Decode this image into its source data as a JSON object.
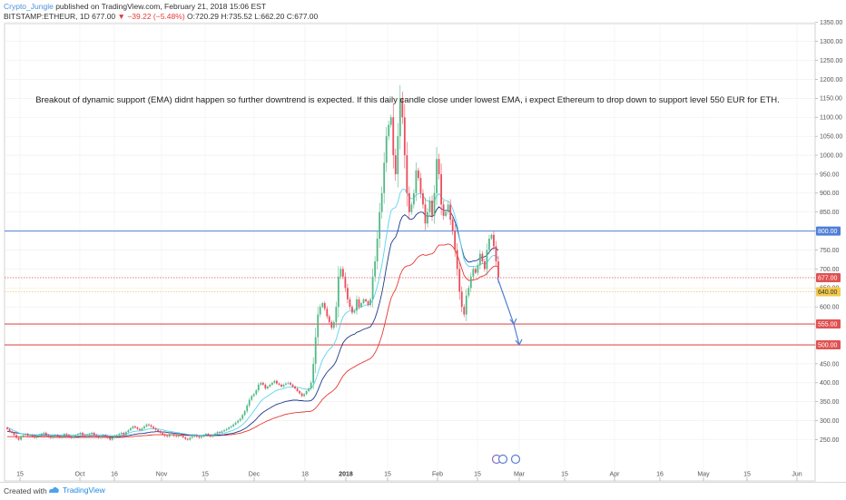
{
  "header": {
    "author": "Crypto_Jungle",
    "published": "published on TradingView.com, February 21, 2018 15:06 EST",
    "symbol": "BITSTAMP:ETHEUR, 1D",
    "last": "677.00",
    "change": "−39.22 (−5.48%)",
    "open": "O:720.29",
    "high": "H:735.52",
    "low": "L:662.20",
    "close": "C:677.00"
  },
  "footer": {
    "created": "Created with",
    "brand": "TradingView"
  },
  "chart_data": {
    "type": "line",
    "annotation": "Breakout of dynamic support (EMA) didnt happen so further downtrend is expected. If this daily candle close under lowest EMA, i expect Ethereum to drop down to support level 550 EUR for ETH.",
    "ylim": [
      228,
      1380
    ],
    "y_ticks": [
      250,
      300,
      350,
      400,
      450,
      500,
      550,
      600,
      650,
      700,
      750,
      800,
      850,
      900,
      950,
      1000,
      1050,
      1100,
      1150,
      1200,
      1250,
      1300,
      1350
    ],
    "x_ticks": [
      {
        "label": "15",
        "bold": false
      },
      {
        "label": "Oct",
        "bold": false
      },
      {
        "label": "16",
        "bold": false
      },
      {
        "label": "Nov",
        "bold": false
      },
      {
        "label": "15",
        "bold": false
      },
      {
        "label": "Dec",
        "bold": false
      },
      {
        "label": "18",
        "bold": false
      },
      {
        "label": "2018",
        "bold": true
      },
      {
        "label": "15",
        "bold": false
      },
      {
        "label": "Feb",
        "bold": false
      },
      {
        "label": "15",
        "bold": false
      },
      {
        "label": "Mar",
        "bold": false
      },
      {
        "label": "15",
        "bold": false
      },
      {
        "label": "Apr",
        "bold": false
      },
      {
        "label": "16",
        "bold": false
      },
      {
        "label": "May",
        "bold": false
      },
      {
        "label": "15",
        "bold": false
      },
      {
        "label": "Jun",
        "bold": false
      }
    ],
    "levels": [
      {
        "value": 800,
        "label": "800.00",
        "color": "#4f7fd6"
      },
      {
        "value": 677,
        "label": "677.00",
        "color": "#e05252"
      },
      {
        "value": 640,
        "label": "640.00",
        "color": "#f2c94c"
      },
      {
        "value": 555,
        "label": "555.00",
        "color": "#e05252"
      },
      {
        "value": 500,
        "label": "500.00",
        "color": "#e05252"
      }
    ],
    "candles_close": [
      278,
      272,
      268,
      262,
      255,
      250,
      258,
      262,
      265,
      260,
      262,
      258,
      255,
      260,
      262,
      265,
      268,
      262,
      258,
      255,
      260,
      262,
      258,
      256,
      260,
      265,
      262,
      258,
      255,
      260,
      262,
      265,
      268,
      262,
      258,
      262,
      265,
      268,
      262,
      258,
      255,
      260,
      262,
      258,
      255,
      250,
      255,
      260,
      262,
      265,
      268,
      262,
      270,
      275,
      280,
      285,
      282,
      278,
      275,
      280,
      285,
      290,
      288,
      284,
      280,
      276,
      272,
      268,
      264,
      260,
      258,
      262,
      264,
      260,
      258,
      262,
      260,
      256,
      252,
      250,
      255,
      258,
      262,
      258,
      255,
      258,
      262,
      265,
      262,
      258,
      262,
      266,
      270,
      268,
      272,
      275,
      278,
      282,
      285,
      290,
      295,
      300,
      305,
      315,
      325,
      340,
      355,
      365,
      370,
      380,
      395,
      400,
      395,
      385,
      390,
      395,
      400,
      405,
      398,
      395,
      390,
      395,
      398,
      400,
      395,
      390,
      385,
      378,
      372,
      365,
      370,
      378,
      385,
      400,
      450,
      520,
      580,
      600,
      610,
      595,
      575,
      560,
      545,
      560,
      600,
      680,
      700,
      680,
      650,
      620,
      600,
      585,
      590,
      620,
      600,
      610,
      620,
      615,
      605,
      620,
      680,
      720,
      780,
      850,
      900,
      980,
      1050,
      1080,
      1100,
      1000,
      950,
      1050,
      1150,
      1100,
      1000,
      900,
      850,
      870,
      900,
      960,
      940,
      900,
      870,
      820,
      850,
      880,
      840,
      900,
      990,
      950,
      870,
      840,
      850,
      870,
      830,
      800,
      750,
      700,
      640,
      600,
      580,
      630,
      650,
      680,
      700,
      690,
      710,
      740,
      720,
      700,
      750,
      780,
      790,
      760,
      720,
      677
    ],
    "ema_fast": [
      282,
      280,
      277,
      274,
      271,
      268,
      266,
      265,
      264,
      264,
      263,
      263,
      263,
      263,
      264,
      264,
      265,
      264,
      264,
      263,
      263,
      263,
      262,
      262,
      263,
      263,
      263,
      263,
      262,
      262,
      262,
      263,
      264,
      264,
      264,
      264,
      265,
      265,
      265,
      264,
      263,
      263,
      263,
      262,
      262,
      261,
      260,
      261,
      261,
      262,
      263,
      264,
      265,
      267,
      269,
      271,
      272,
      273,
      273,
      274,
      275,
      277,
      278,
      279,
      279,
      279,
      278,
      277,
      276,
      274,
      273,
      272,
      271,
      270,
      269,
      268,
      267,
      266,
      265,
      264,
      263,
      263,
      263,
      262,
      262,
      262,
      262,
      263,
      263,
      263,
      263,
      264,
      265,
      265,
      266,
      267,
      269,
      271,
      273,
      275,
      278,
      281,
      285,
      290,
      295,
      302,
      310,
      318,
      326,
      334,
      343,
      351,
      357,
      361,
      365,
      369,
      373,
      377,
      380,
      382,
      383,
      385,
      387,
      388,
      389,
      389,
      389,
      388,
      387,
      385,
      384,
      383,
      383,
      385,
      393,
      407,
      425,
      443,
      460,
      471,
      481,
      488,
      493,
      501,
      514,
      536,
      557,
      574,
      582,
      587,
      590,
      591,
      592,
      597,
      598,
      600,
      603,
      605,
      605,
      608,
      618,
      633,
      654,
      681,
      710,
      747,
      788,
      822,
      853,
      860,
      862,
      876,
      900,
      910,
      910,
      901,
      889,
      885,
      887,
      895,
      899,
      899,
      895,
      883,
      879,
      879,
      875,
      879,
      893,
      899,
      890,
      883,
      880,
      879,
      872,
      859,
      840,
      816,
      784,
      752,
      724,
      713,
      707,
      707,
      707,
      706,
      708,
      713,
      714,
      713,
      717,
      725,
      733,
      736,
      734,
      727
    ],
    "ema_mid": [
      272,
      271,
      270,
      269,
      268,
      267,
      266,
      265,
      264,
      263,
      262,
      261,
      261,
      260,
      260,
      261,
      261,
      261,
      261,
      260,
      260,
      260,
      260,
      259,
      259,
      259,
      259,
      259,
      258,
      258,
      258,
      258,
      259,
      259,
      259,
      259,
      259,
      260,
      260,
      260,
      259,
      259,
      259,
      259,
      258,
      258,
      258,
      258,
      258,
      258,
      259,
      259,
      260,
      261,
      262,
      263,
      264,
      265,
      266,
      266,
      267,
      268,
      269,
      270,
      270,
      271,
      271,
      271,
      270,
      270,
      269,
      268,
      268,
      267,
      266,
      266,
      265,
      264,
      263,
      263,
      262,
      262,
      262,
      261,
      261,
      261,
      261,
      261,
      261,
      261,
      261,
      261,
      262,
      262,
      262,
      263,
      264,
      265,
      266,
      267,
      269,
      271,
      273,
      276,
      279,
      283,
      288,
      293,
      298,
      304,
      311,
      317,
      322,
      326,
      330,
      333,
      337,
      340,
      343,
      345,
      347,
      349,
      351,
      352,
      353,
      354,
      354,
      354,
      353,
      353,
      352,
      352,
      352,
      353,
      358,
      367,
      380,
      395,
      409,
      419,
      428,
      434,
      440,
      447,
      457,
      474,
      491,
      505,
      513,
      519,
      523,
      526,
      528,
      533,
      535,
      538,
      541,
      543,
      545,
      548,
      557,
      570,
      588,
      611,
      637,
      669,
      705,
      737,
      766,
      777,
      784,
      800,
      825,
      838,
      843,
      839,
      832,
      831,
      834,
      843,
      848,
      850,
      849,
      841,
      839,
      840,
      838,
      843,
      857,
      864,
      859,
      855,
      854,
      855,
      850,
      840,
      825,
      806,
      781,
      755,
      732,
      723,
      718,
      719,
      721,
      721,
      724,
      729,
      731,
      732,
      736,
      744,
      752,
      756,
      755,
      749
    ],
    "ema_slow": [
      258,
      258,
      258,
      258,
      258,
      258,
      258,
      258,
      258,
      257,
      257,
      257,
      257,
      257,
      257,
      257,
      257,
      257,
      257,
      256,
      256,
      256,
      256,
      256,
      256,
      256,
      256,
      256,
      256,
      256,
      256,
      256,
      256,
      256,
      256,
      256,
      256,
      256,
      256,
      256,
      256,
      256,
      256,
      256,
      256,
      256,
      256,
      256,
      256,
      256,
      256,
      256,
      257,
      257,
      258,
      258,
      259,
      259,
      260,
      260,
      261,
      261,
      262,
      262,
      263,
      263,
      263,
      263,
      263,
      263,
      263,
      263,
      263,
      263,
      263,
      262,
      262,
      262,
      262,
      261,
      261,
      261,
      261,
      261,
      261,
      261,
      261,
      261,
      261,
      261,
      261,
      261,
      261,
      261,
      262,
      262,
      262,
      263,
      263,
      264,
      265,
      266,
      267,
      269,
      271,
      273,
      275,
      278,
      281,
      284,
      288,
      291,
      294,
      297,
      300,
      302,
      305,
      307,
      309,
      311,
      313,
      315,
      317,
      318,
      319,
      320,
      321,
      322,
      322,
      323,
      323,
      324,
      324,
      325,
      328,
      333,
      340,
      348,
      356,
      362,
      368,
      372,
      376,
      381,
      387,
      397,
      408,
      418,
      425,
      431,
      435,
      439,
      442,
      446,
      449,
      452,
      455,
      458,
      461,
      464,
      470,
      479,
      491,
      507,
      525,
      548,
      574,
      599,
      622,
      636,
      646,
      663,
      684,
      697,
      705,
      708,
      709,
      712,
      717,
      726,
      732,
      736,
      738,
      736,
      737,
      739,
      740,
      745,
      756,
      763,
      763,
      763,
      764,
      766,
      764,
      759,
      750,
      737,
      720,
      701,
      683,
      675,
      670,
      670,
      671,
      672,
      674,
      679,
      681,
      683,
      688,
      695,
      702,
      707,
      708,
      704
    ],
    "projection": [
      677,
      555,
      500
    ]
  }
}
